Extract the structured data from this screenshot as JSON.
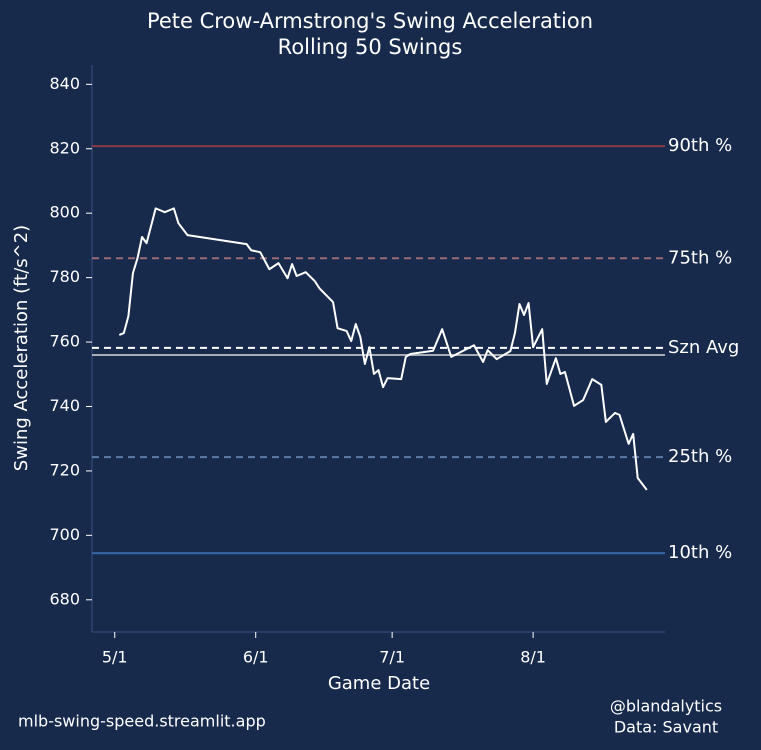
{
  "chart_data": {
    "type": "line",
    "title": "Pete Crow-Armstrong's Swing Acceleration",
    "subtitle": "Rolling 50 Swings",
    "x_label": "Game Date",
    "y_label": "Swing Acceleration (ft/s^2)",
    "x": [
      "5/2",
      "5/3",
      "5/4",
      "5/5",
      "5/6",
      "5/7",
      "5/8",
      "5/10",
      "5/12",
      "5/14",
      "5/15",
      "5/17",
      "5/30",
      "5/31",
      "6/2",
      "6/4",
      "6/6",
      "6/8",
      "6/9",
      "6/10",
      "6/12",
      "6/14",
      "6/15",
      "6/18",
      "6/19",
      "6/21",
      "6/22",
      "6/23",
      "6/24",
      "6/25",
      "6/26",
      "6/27",
      "6/28",
      "6/29",
      "6/30",
      "7/3",
      "7/4",
      "7/5",
      "7/10",
      "7/12",
      "7/14",
      "7/19",
      "7/21",
      "7/22",
      "7/24",
      "7/27",
      "7/28",
      "7/29",
      "7/30",
      "7/31",
      "8/1",
      "8/3",
      "8/4",
      "8/6",
      "8/7",
      "8/8",
      "8/10",
      "8/12",
      "8/14",
      "8/16",
      "8/17",
      "8/19",
      "8/20",
      "8/22",
      "8/23",
      "8/24",
      "8/26"
    ],
    "series": [
      {
        "color": "#ffffff",
        "values": [
          762.2,
          762.8,
          768,
          781.4,
          786,
          792.6,
          790.7,
          801.5,
          800.3,
          801.5,
          796.9,
          793.2,
          790.4,
          788.5,
          787.9,
          782.6,
          784.5,
          779.8,
          784.2,
          780.5,
          781.7,
          778.9,
          776.7,
          772.4,
          764.3,
          763.4,
          760.3,
          765.6,
          761.6,
          753.2,
          758.4,
          750.1,
          751.3,
          746,
          748.8,
          748.5,
          755.4,
          756.3,
          757.3,
          764,
          755.4,
          759,
          753.8,
          757.5,
          754.7,
          757.2,
          762.8,
          771.8,
          768.4,
          772.1,
          758.4,
          764,
          747,
          755,
          750.1,
          750.7,
          740.2,
          742,
          748.5,
          746.7,
          735.2,
          738,
          737.4,
          728.4,
          731.5,
          717.8,
          714.1
        ]
      }
    ],
    "xlim": [
      "4/26",
      "8/30"
    ],
    "xticks": [
      "5/1",
      "6/1",
      "7/1",
      "8/1"
    ],
    "ylim": [
      670,
      846
    ],
    "yticks": [
      680,
      700,
      720,
      740,
      760,
      780,
      800,
      820,
      840
    ],
    "reference_lines": [
      {
        "label": "90th %",
        "value": 820.8,
        "color": "#8a3a46",
        "text_color": "#c9474f",
        "dashed": false
      },
      {
        "label": "75th %",
        "value": 786,
        "color": "#9a6a76",
        "text_color": "#d99aa2",
        "dashed": true
      },
      {
        "label": "Szn Avg",
        "value": 758.2,
        "color": "#ffffff",
        "text_color": "#ffffff",
        "dashed": true
      },
      {
        "value": 756,
        "color": "#a8acb4",
        "dashed": false
      },
      {
        "label": "25th %",
        "value": 724.3,
        "color": "#607aa8",
        "text_color": "#a6b6d6",
        "dashed": true
      },
      {
        "label": "10th %",
        "value": 694.5,
        "color": "#3566a6",
        "text_color": "#5f8cc8",
        "dashed": false
      }
    ],
    "footer_left": "mlb-swing-speed.streamlit.app",
    "footer_right": [
      "@blandalytics",
      "Data: Savant"
    ]
  }
}
